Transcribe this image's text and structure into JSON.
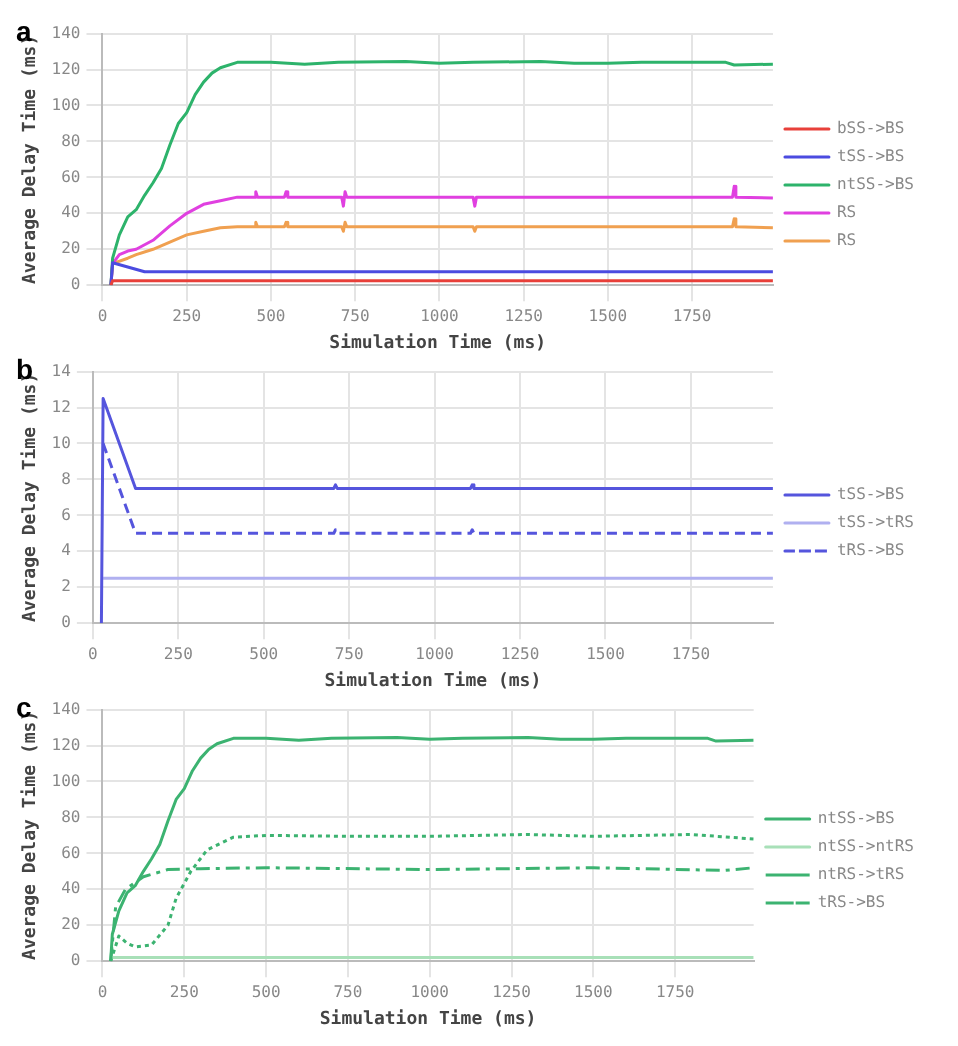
{
  "chart_data": [
    {
      "type": "line",
      "title": "a",
      "xlabel": "Simulation Time (ms)",
      "ylabel": "Average Delay Time (ms)",
      "xlim": [
        0,
        1990
      ],
      "xticks": [
        0,
        250,
        500,
        750,
        1000,
        1250,
        1500,
        1750
      ],
      "ylim": [
        0,
        140
      ],
      "yticks": [
        0,
        20,
        40,
        60,
        80,
        100,
        120,
        140
      ],
      "grid": true,
      "legend": "right",
      "marker": "none",
      "series": [
        {
          "name": "bSS->BS",
          "color": "#e8403a",
          "x": [
            25,
            30,
            1990
          ],
          "values": [
            0,
            2.5,
            2.5
          ]
        },
        {
          "name": "tSS->BS",
          "color": "#4b4be0",
          "x": [
            25,
            30,
            125,
            1990
          ],
          "values": [
            0,
            12.5,
            7.5,
            7.5
          ]
        },
        {
          "name": "ntSS->BS",
          "color": "#2db36b",
          "x": [
            25,
            30,
            50,
            75,
            100,
            125,
            150,
            175,
            200,
            225,
            250,
            275,
            300,
            325,
            350,
            400,
            500,
            600,
            700,
            900,
            1000,
            1100,
            1300,
            1400,
            1500,
            1600,
            1750,
            1850,
            1875,
            1990
          ],
          "values": [
            0,
            15,
            28,
            38,
            42,
            50,
            57,
            65,
            78,
            90,
            96,
            106,
            113,
            118,
            121,
            124,
            124,
            123,
            124,
            124.5,
            123.5,
            124,
            124.5,
            123.5,
            123.5,
            124,
            124,
            124,
            122.5,
            123
          ]
        },
        {
          "name": "RS",
          "color": "#e040e0",
          "x": [
            25,
            30,
            50,
            75,
            100,
            150,
            200,
            250,
            300,
            350,
            400,
            450,
            455,
            460,
            540,
            545,
            550,
            710,
            715,
            720,
            725,
            1100,
            1105,
            1110,
            1870,
            1875,
            1880,
            1990
          ],
          "values": [
            0,
            12,
            17,
            19,
            20,
            25,
            33,
            40,
            45,
            47,
            49,
            49,
            52,
            49,
            49,
            52,
            49,
            49,
            44,
            52,
            49,
            49,
            44,
            49,
            49,
            55,
            49,
            48.5
          ]
        },
        {
          "name": "RS",
          "color": "#f0a050",
          "x": [
            25,
            30,
            75,
            100,
            150,
            200,
            250,
            300,
            350,
            400,
            450,
            455,
            460,
            540,
            545,
            550,
            710,
            715,
            720,
            725,
            1100,
            1105,
            1110,
            1870,
            1875,
            1880,
            1990
          ],
          "values": [
            0,
            12,
            15,
            17,
            20,
            24,
            28,
            30,
            32,
            32.5,
            32.5,
            35,
            32.5,
            32.5,
            35,
            32.5,
            32.5,
            30,
            35,
            32.5,
            32.5,
            30,
            32.5,
            32.5,
            37,
            32.5,
            32
          ]
        }
      ]
    },
    {
      "type": "line",
      "title": "b",
      "xlabel": "Simulation Time (ms)",
      "ylabel": "Average Delay Time (ms)",
      "xlim": [
        0,
        1990
      ],
      "xticks": [
        0,
        250,
        500,
        750,
        1000,
        1250,
        1500,
        1750
      ],
      "ylim": [
        0,
        14
      ],
      "yticks": [
        0,
        2,
        4,
        6,
        8,
        10,
        12,
        14
      ],
      "grid": true,
      "legend": "right",
      "marker": "none",
      "series": [
        {
          "name": "tSS->BS",
          "color": "#5555dd",
          "line_style": "solid",
          "x": [
            25,
            30,
            125,
            705,
            710,
            715,
            1105,
            1110,
            1115,
            1990
          ],
          "values": [
            0,
            12.5,
            7.5,
            7.5,
            7.7,
            7.5,
            7.5,
            7.7,
            7.5,
            7.5
          ]
        },
        {
          "name": "tSS->tRS",
          "color": "#b0b0f0",
          "line_style": "solid",
          "x": [
            30,
            1990
          ],
          "values": [
            2.5,
            2.5
          ]
        },
        {
          "name": "tRS->BS",
          "color": "#5555dd",
          "line_style": "dashed",
          "x": [
            30,
            125,
            705,
            710,
            715,
            1105,
            1110,
            1115,
            1990
          ],
          "values": [
            10,
            5,
            5,
            5.2,
            5,
            5,
            5.2,
            5,
            5
          ]
        }
      ]
    },
    {
      "type": "line",
      "title": "c",
      "xlabel": "Simulation Time (ms)",
      "ylabel": "Average Delay Time (ms)",
      "xlim": [
        0,
        1990
      ],
      "xticks": [
        0,
        250,
        500,
        750,
        1000,
        1250,
        1500,
        1750
      ],
      "ylim": [
        0,
        140
      ],
      "yticks": [
        0,
        20,
        40,
        60,
        80,
        100,
        120,
        140
      ],
      "grid": true,
      "legend": "right",
      "marker": "none",
      "series": [
        {
          "name": "ntSS->BS",
          "color": "#3cb371",
          "line_style": "solid",
          "x": [
            25,
            30,
            50,
            75,
            100,
            125,
            150,
            175,
            200,
            225,
            250,
            275,
            300,
            325,
            350,
            400,
            500,
            600,
            700,
            900,
            1000,
            1100,
            1300,
            1400,
            1500,
            1600,
            1750,
            1850,
            1875,
            1990
          ],
          "values": [
            0,
            15,
            28,
            38,
            42,
            50,
            57,
            65,
            78,
            90,
            96,
            106,
            113,
            118,
            121,
            124,
            124,
            123,
            124,
            124.5,
            123.5,
            124,
            124.5,
            123.5,
            123.5,
            124,
            124,
            124,
            122.5,
            123
          ]
        },
        {
          "name": "ntSS->ntRS",
          "color": "#a8e0b8",
          "line_style": "solid",
          "x": [
            30,
            1990
          ],
          "values": [
            2,
            2
          ]
        },
        {
          "name": "ntRS->tRS",
          "color": "#3cb371",
          "line_style": "dotted",
          "x": [
            25,
            50,
            75,
            100,
            150,
            200,
            225,
            270,
            320,
            400,
            500,
            750,
            1000,
            1300,
            1500,
            1800,
            1990
          ],
          "values": [
            0,
            14,
            10,
            8,
            9,
            20,
            35,
            50,
            62,
            69,
            70,
            69.5,
            69.5,
            70.5,
            69.5,
            70.5,
            68
          ]
        },
        {
          "name": "tRS->BS",
          "color": "#3cb371",
          "line_style": "dashdot",
          "x": [
            25,
            40,
            70,
            125,
            200,
            300,
            500,
            1000,
            1500,
            1900,
            1990
          ],
          "values": [
            0,
            30,
            40,
            47,
            51,
            51.5,
            52,
            51,
            52,
            50.5,
            52
          ]
        }
      ]
    }
  ]
}
